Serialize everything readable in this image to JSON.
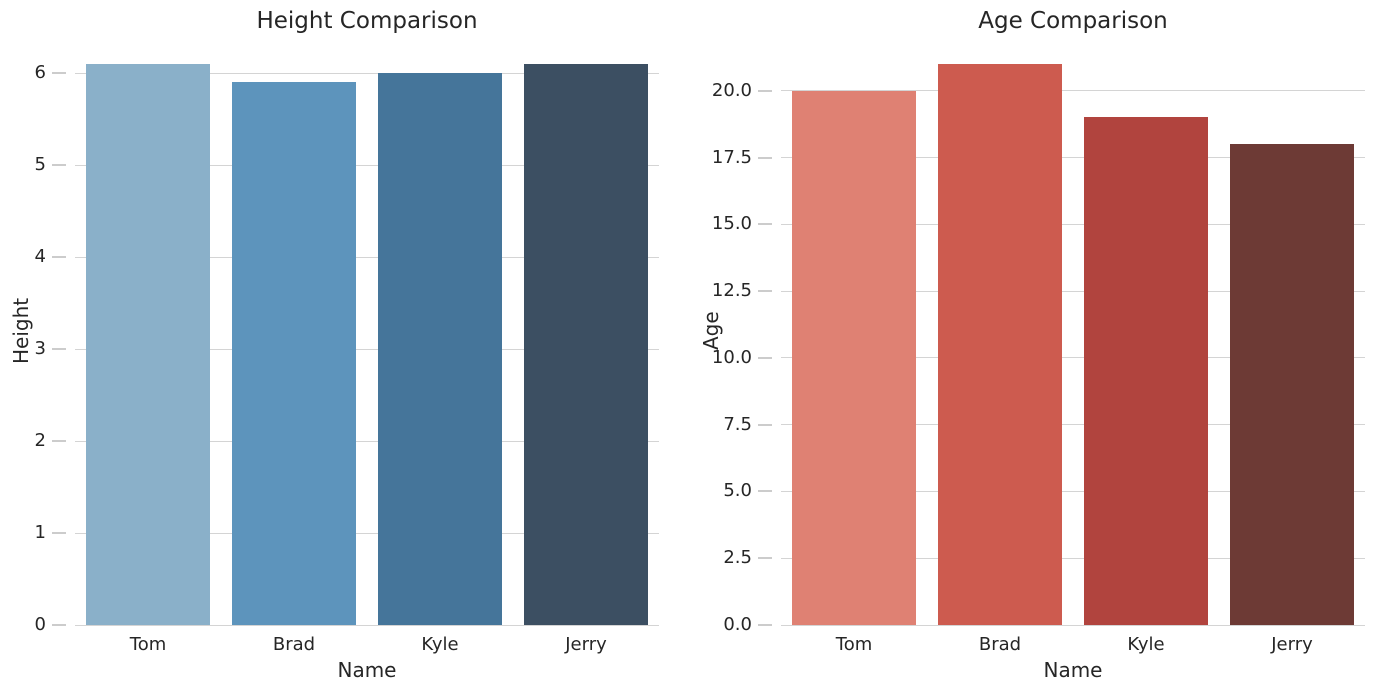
{
  "figure": {
    "background": "#ffffff",
    "text_color": "#262626",
    "grid_color": "#d4d4d4",
    "tick_color": "#cccccc"
  },
  "chart_data": [
    {
      "type": "bar",
      "title": "Height Comparison",
      "xlabel": "Name",
      "ylabel": "Height",
      "categories": [
        "Tom",
        "Brad",
        "Kyle",
        "Jerry"
      ],
      "values": [
        6.1,
        5.9,
        6.0,
        6.1
      ],
      "bar_colors": [
        "#8AB0C9",
        "#5D94BC",
        "#45759A",
        "#3C4F62"
      ],
      "yticks": [
        0,
        1,
        2,
        3,
        4,
        5,
        6
      ],
      "ytick_labels": [
        "0",
        "1",
        "2",
        "3",
        "4",
        "5",
        "6"
      ],
      "ylim": [
        0,
        6.405
      ],
      "grid": true,
      "legend": null,
      "bar_width_fraction": 0.85
    },
    {
      "type": "bar",
      "title": "Age Comparison",
      "xlabel": "Name",
      "ylabel": "Age",
      "categories": [
        "Tom",
        "Brad",
        "Kyle",
        "Jerry"
      ],
      "values": [
        20,
        21,
        19,
        18
      ],
      "bar_colors": [
        "#DF8173",
        "#CD5B4F",
        "#B1443E",
        "#6D3A35"
      ],
      "yticks": [
        0,
        2.5,
        5,
        7.5,
        10,
        12.5,
        15,
        17.5,
        20
      ],
      "ytick_labels": [
        "0.0",
        "2.5",
        "5.0",
        "7.5",
        "10.0",
        "12.5",
        "15.0",
        "17.5",
        "20.0"
      ],
      "ylim": [
        0,
        22.05
      ],
      "grid": true,
      "legend": null,
      "bar_width_fraction": 0.85
    }
  ]
}
